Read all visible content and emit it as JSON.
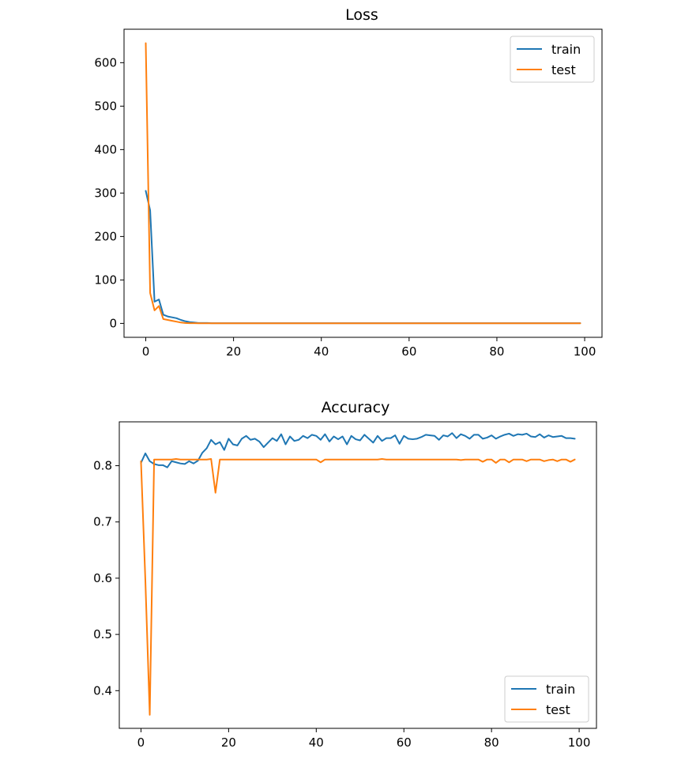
{
  "chart_data": [
    {
      "type": "line",
      "title": "Loss",
      "xlabel": "",
      "ylabel": "",
      "xlim": [
        -4.95,
        103.95
      ],
      "ylim": [
        -32,
        677
      ],
      "xticks": [
        0,
        20,
        40,
        60,
        80,
        100
      ],
      "xtick_labels": [
        "0",
        "20",
        "40",
        "60",
        "80",
        "100"
      ],
      "yticks": [
        0,
        100,
        200,
        300,
        400,
        500,
        600
      ],
      "ytick_labels": [
        "0",
        "100",
        "200",
        "300",
        "400",
        "500",
        "600"
      ],
      "grid": false,
      "legend": "upper right",
      "series": [
        {
          "name": "train",
          "color": "#1f77b4",
          "x": [
            0,
            1,
            2,
            3,
            4,
            5,
            6,
            7,
            8,
            9,
            10,
            11,
            12,
            13,
            14,
            15,
            20,
            30,
            40,
            50,
            60,
            70,
            80,
            90,
            99
          ],
          "y": [
            305,
            260,
            50,
            55,
            20,
            16,
            14,
            12,
            8,
            5,
            3,
            2,
            1,
            1,
            1,
            0.5,
            0.5,
            0.5,
            0.5,
            0.5,
            0.5,
            0.5,
            0.5,
            0.5,
            0.5
          ]
        },
        {
          "name": "test",
          "color": "#ff7f0e",
          "x": [
            0,
            1,
            2,
            3,
            4,
            5,
            6,
            7,
            8,
            9,
            10,
            11,
            12,
            13,
            14,
            15,
            20,
            30,
            40,
            50,
            60,
            70,
            80,
            90,
            99
          ],
          "y": [
            645,
            70,
            30,
            40,
            10,
            8,
            6,
            4,
            2,
            1,
            0.5,
            0.5,
            0.3,
            0.3,
            0.3,
            0.3,
            0.3,
            0.3,
            0.3,
            0.3,
            0.3,
            0.3,
            0.3,
            0.3,
            0.3
          ]
        }
      ]
    },
    {
      "type": "line",
      "title": "Accuracy",
      "xlabel": "",
      "ylabel": "",
      "xlim": [
        -4.95,
        103.95
      ],
      "ylim": [
        0.333,
        0.878
      ],
      "xticks": [
        0,
        20,
        40,
        60,
        80,
        100
      ],
      "xtick_labels": [
        "0",
        "20",
        "40",
        "60",
        "80",
        "100"
      ],
      "yticks": [
        0.4,
        0.5,
        0.6,
        0.7,
        0.8
      ],
      "ytick_labels": [
        "0.4",
        "0.5",
        "0.6",
        "0.7",
        "0.8"
      ],
      "grid": false,
      "legend": "lower right",
      "series": [
        {
          "name": "train",
          "color": "#1f77b4",
          "x": [
            0,
            1,
            2,
            3,
            4,
            5,
            6,
            7,
            8,
            9,
            10,
            11,
            12,
            13,
            14,
            15,
            16,
            17,
            18,
            19,
            20,
            21,
            22,
            23,
            24,
            25,
            26,
            27,
            28,
            29,
            30,
            31,
            32,
            33,
            34,
            35,
            36,
            37,
            38,
            39,
            40,
            41,
            42,
            43,
            44,
            45,
            46,
            47,
            48,
            49,
            50,
            51,
            52,
            53,
            54,
            55,
            56,
            57,
            58,
            59,
            60,
            61,
            62,
            63,
            64,
            65,
            66,
            67,
            68,
            69,
            70,
            71,
            72,
            73,
            74,
            75,
            76,
            77,
            78,
            79,
            80,
            81,
            82,
            83,
            84,
            85,
            86,
            87,
            88,
            89,
            90,
            91,
            92,
            93,
            94,
            95,
            96,
            97,
            98,
            99
          ],
          "y": [
            0.805,
            0.822,
            0.808,
            0.803,
            0.801,
            0.801,
            0.797,
            0.808,
            0.806,
            0.804,
            0.803,
            0.808,
            0.804,
            0.809,
            0.823,
            0.831,
            0.846,
            0.838,
            0.842,
            0.828,
            0.848,
            0.838,
            0.836,
            0.848,
            0.853,
            0.846,
            0.848,
            0.843,
            0.833,
            0.841,
            0.849,
            0.844,
            0.856,
            0.838,
            0.852,
            0.844,
            0.846,
            0.853,
            0.849,
            0.855,
            0.853,
            0.846,
            0.856,
            0.843,
            0.852,
            0.847,
            0.852,
            0.838,
            0.853,
            0.847,
            0.845,
            0.855,
            0.848,
            0.841,
            0.853,
            0.844,
            0.849,
            0.849,
            0.854,
            0.839,
            0.853,
            0.848,
            0.847,
            0.848,
            0.851,
            0.855,
            0.854,
            0.853,
            0.846,
            0.854,
            0.852,
            0.858,
            0.849,
            0.856,
            0.853,
            0.848,
            0.855,
            0.855,
            0.848,
            0.85,
            0.854,
            0.848,
            0.852,
            0.855,
            0.857,
            0.853,
            0.856,
            0.855,
            0.857,
            0.852,
            0.851,
            0.856,
            0.85,
            0.854,
            0.851,
            0.852,
            0.853,
            0.849,
            0.849,
            0.848
          ]
        },
        {
          "name": "test",
          "color": "#ff7f0e",
          "x": [
            0,
            1,
            2,
            3,
            4,
            5,
            6,
            7,
            8,
            9,
            10,
            11,
            12,
            13,
            14,
            15,
            16,
            17,
            18,
            19,
            20,
            21,
            22,
            23,
            24,
            25,
            26,
            27,
            28,
            29,
            30,
            31,
            32,
            33,
            34,
            35,
            36,
            37,
            38,
            39,
            40,
            41,
            42,
            43,
            44,
            45,
            46,
            47,
            48,
            49,
            50,
            51,
            52,
            53,
            54,
            55,
            56,
            57,
            58,
            59,
            60,
            61,
            62,
            63,
            64,
            65,
            66,
            67,
            68,
            69,
            70,
            71,
            72,
            73,
            74,
            75,
            76,
            77,
            78,
            79,
            80,
            81,
            82,
            83,
            84,
            85,
            86,
            87,
            88,
            89,
            90,
            91,
            92,
            93,
            94,
            95,
            96,
            97,
            98,
            99
          ],
          "y": [
            0.808,
            0.596,
            0.357,
            0.811,
            0.811,
            0.811,
            0.811,
            0.811,
            0.812,
            0.811,
            0.811,
            0.811,
            0.811,
            0.811,
            0.811,
            0.811,
            0.812,
            0.752,
            0.811,
            0.811,
            0.811,
            0.811,
            0.811,
            0.811,
            0.811,
            0.811,
            0.811,
            0.811,
            0.811,
            0.811,
            0.811,
            0.811,
            0.811,
            0.811,
            0.811,
            0.811,
            0.811,
            0.811,
            0.811,
            0.811,
            0.811,
            0.806,
            0.811,
            0.811,
            0.811,
            0.811,
            0.811,
            0.811,
            0.811,
            0.811,
            0.811,
            0.811,
            0.811,
            0.811,
            0.811,
            0.812,
            0.811,
            0.811,
            0.811,
            0.811,
            0.811,
            0.811,
            0.811,
            0.811,
            0.811,
            0.811,
            0.811,
            0.811,
            0.811,
            0.811,
            0.811,
            0.811,
            0.811,
            0.81,
            0.811,
            0.811,
            0.811,
            0.811,
            0.807,
            0.811,
            0.811,
            0.805,
            0.811,
            0.811,
            0.806,
            0.811,
            0.811,
            0.811,
            0.808,
            0.811,
            0.811,
            0.811,
            0.808,
            0.81,
            0.811,
            0.808,
            0.811,
            0.811,
            0.807,
            0.811
          ]
        }
      ]
    }
  ]
}
